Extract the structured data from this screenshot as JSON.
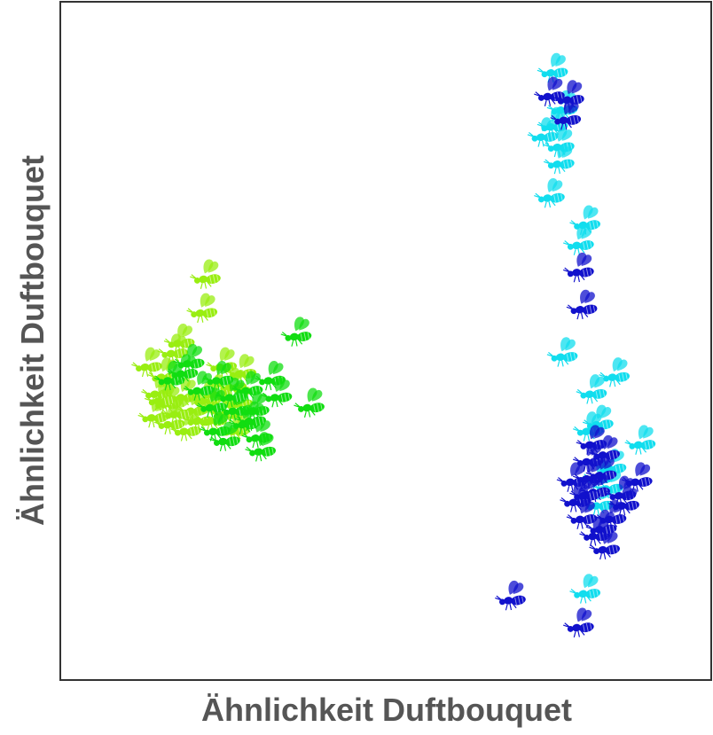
{
  "chart_data": {
    "type": "scatter",
    "xlabel": "Ähnlichkeit Duftbouquet",
    "ylabel": "Ähnlichkeit Duftbouquet",
    "xlim": [
      0,
      100
    ],
    "ylim": [
      0,
      100
    ],
    "grid": false,
    "ticks": false,
    "marker": "bee-icon",
    "series": [
      {
        "color": "#99ee11",
        "points": [
          [
            22.5,
            59.5
          ],
          [
            22.0,
            54.5
          ],
          [
            18.5,
            50.0
          ],
          [
            17.5,
            48.5
          ],
          [
            13.5,
            46.5
          ],
          [
            16.0,
            45.0
          ],
          [
            15.0,
            42.5
          ],
          [
            19.0,
            42.0
          ],
          [
            16.5,
            41.0
          ],
          [
            22.5,
            41.5
          ],
          [
            20.5,
            40.0
          ],
          [
            21.5,
            38.5
          ],
          [
            17.0,
            38.0
          ],
          [
            19.5,
            37.0
          ],
          [
            14.5,
            39.0
          ],
          [
            25.0,
            46.5
          ],
          [
            28.0,
            45.5
          ],
          [
            26.5,
            43.5
          ],
          [
            27.5,
            41.0
          ],
          [
            24.0,
            42.5
          ],
          [
            23.5,
            38.5
          ],
          [
            18.0,
            39.5
          ],
          [
            25.5,
            39.5
          ],
          [
            27.0,
            37.0
          ],
          [
            15.5,
            41.5
          ]
        ]
      },
      {
        "color": "#11dd11",
        "points": [
          [
            36.5,
            51.0
          ],
          [
            20.0,
            47.0
          ],
          [
            17.0,
            44.5
          ],
          [
            19.0,
            45.5
          ],
          [
            24.5,
            44.5
          ],
          [
            32.5,
            44.5
          ],
          [
            29.0,
            43.0
          ],
          [
            33.5,
            42.0
          ],
          [
            21.5,
            43.0
          ],
          [
            23.5,
            40.5
          ],
          [
            27.0,
            40.0
          ],
          [
            30.0,
            40.0
          ],
          [
            24.0,
            37.0
          ],
          [
            28.5,
            38.0
          ],
          [
            38.5,
            40.5
          ],
          [
            30.5,
            36.0
          ],
          [
            31.0,
            34.0
          ],
          [
            26.5,
            42.0
          ],
          [
            29.5,
            38.5
          ],
          [
            25.5,
            35.5
          ]
        ]
      },
      {
        "color": "#11ddee",
        "points": [
          [
            76.0,
            90.0
          ],
          [
            77.5,
            84.5
          ],
          [
            76.0,
            82.0
          ],
          [
            74.5,
            80.5
          ],
          [
            77.0,
            79.0
          ],
          [
            77.0,
            76.5
          ],
          [
            75.5,
            71.5
          ],
          [
            81.0,
            67.5
          ],
          [
            80.0,
            64.5
          ],
          [
            77.5,
            48.0
          ],
          [
            85.5,
            45.0
          ],
          [
            82.0,
            42.5
          ],
          [
            81.5,
            37.0
          ],
          [
            89.5,
            35.0
          ],
          [
            85.0,
            31.5
          ],
          [
            83.0,
            30.0
          ],
          [
            83.0,
            26.0
          ],
          [
            81.0,
            13.0
          ],
          [
            83.0,
            38.0
          ],
          [
            84.5,
            28.5
          ]
        ]
      },
      {
        "color": "#1111cc",
        "points": [
          [
            75.5,
            86.5
          ],
          [
            78.5,
            86.0
          ],
          [
            78.0,
            83.0
          ],
          [
            80.0,
            60.5
          ],
          [
            80.5,
            55.0
          ],
          [
            82.0,
            35.0
          ],
          [
            81.5,
            32.5
          ],
          [
            79.0,
            29.5
          ],
          [
            81.5,
            30.0
          ],
          [
            83.5,
            30.5
          ],
          [
            89.0,
            29.5
          ],
          [
            79.5,
            26.5
          ],
          [
            82.5,
            28.0
          ],
          [
            86.5,
            27.5
          ],
          [
            80.5,
            24.0
          ],
          [
            85.0,
            24.0
          ],
          [
            82.5,
            21.5
          ],
          [
            84.0,
            19.5
          ],
          [
            69.5,
            12.0
          ],
          [
            80.0,
            8.0
          ],
          [
            84.0,
            33.5
          ],
          [
            87.0,
            26.0
          ],
          [
            81.0,
            27.5
          ],
          [
            83.5,
            22.5
          ]
        ]
      }
    ]
  }
}
